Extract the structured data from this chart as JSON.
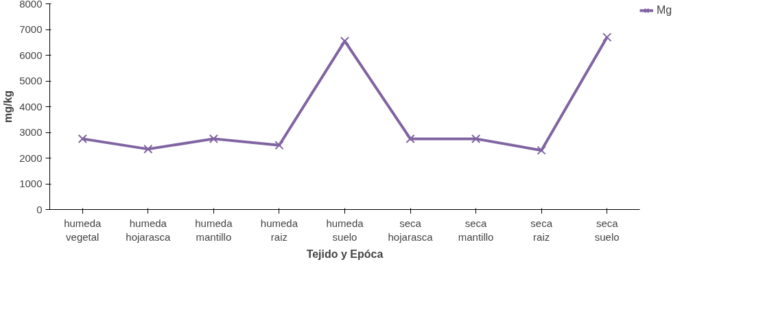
{
  "chart_data": {
    "type": "line",
    "xlabel": "Tejido y Epóca",
    "ylabel": "mg/kg",
    "categories": [
      "humeda\nvegetal",
      "humeda\nhojarasca",
      "humeda\nmantillo",
      "humeda\nraiz",
      "humeda\nsuelo",
      "seca\nhojarasca",
      "seca\nmantillo",
      "seca\nraiz",
      "seca\nsuelo"
    ],
    "series": [
      {
        "name": "Mg",
        "color": "#8064a2",
        "values": [
          2750,
          2350,
          2750,
          2500,
          6550,
          2750,
          2750,
          2300,
          6700
        ]
      }
    ],
    "ylim": [
      0,
      8000
    ],
    "yticks": [
      0,
      1000,
      2000,
      3000,
      4000,
      5000,
      6000,
      7000,
      8000
    ],
    "marker": "cross",
    "legend": "right",
    "grid": false
  }
}
